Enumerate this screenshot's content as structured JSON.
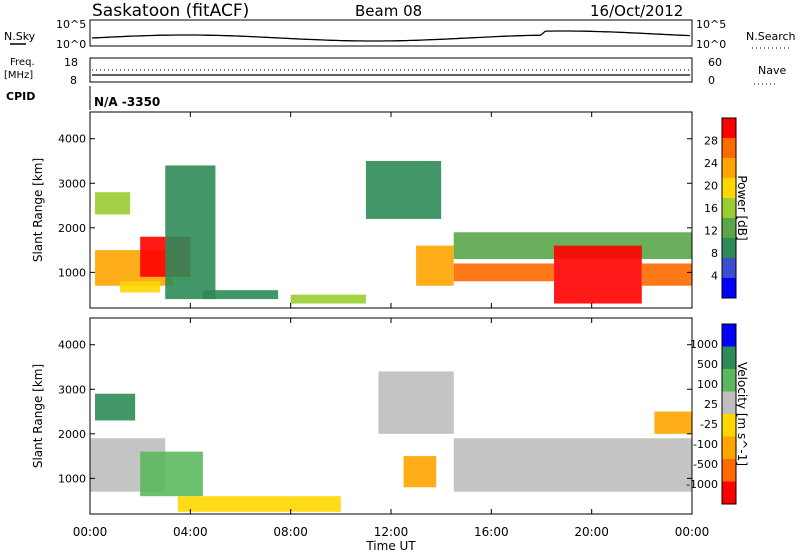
{
  "header": {
    "station": "Saskatoon (fitACF)",
    "beam": "Beam 08",
    "date": "16/Oct/2012"
  },
  "noise_panel": {
    "left_label": "N.Sky",
    "right_label": "N.Search",
    "left_ticks": [
      "10^5",
      "10^0"
    ],
    "right_ticks": [
      "10^5",
      "10^0"
    ]
  },
  "freq_panel": {
    "left_label_line1": "Freq.",
    "left_label_line2": "[MHz]",
    "left_ticks": [
      "18",
      "8"
    ],
    "right_label": "Nave",
    "right_ticks": [
      "60",
      "0"
    ],
    "cpid_label": "CPID",
    "cpid_value": "N/A -3350"
  },
  "colors": {
    "power_scale": [
      "#0000ff",
      "#3a4fd0",
      "#2e8b57",
      "#5aa64a",
      "#9acd32",
      "#ffd700",
      "#ffa500",
      "#ff6a00",
      "#ff0000"
    ],
    "velocity_scale": [
      "#0000ff",
      "#2e8b57",
      "#5cb85c",
      "#bebebe",
      "#ffd700",
      "#ffa500",
      "#ff6a00",
      "#ff0000"
    ],
    "ground_scatter": "#bebebe"
  },
  "chart_data": [
    {
      "type": "heatmap",
      "panel": "power",
      "ylabel": "Slant Range [km]",
      "yticks": [
        "1000",
        "2000",
        "3000",
        "4000"
      ],
      "ylim": [
        200,
        4600
      ],
      "colorbar_label": "Power [dB]",
      "colorbar_ticks": [
        "4",
        "8",
        "12",
        "16",
        "20",
        "24",
        "28"
      ],
      "regions": [
        {
          "t": [
            0.2,
            1.6
          ],
          "r": [
            2300,
            2800
          ],
          "level": 0.55
        },
        {
          "t": [
            0.2,
            3.3
          ],
          "r": [
            700,
            1500
          ],
          "level": 0.75
        },
        {
          "t": [
            2.0,
            4.0
          ],
          "r": [
            900,
            1800
          ],
          "level": 0.95
        },
        {
          "t": [
            1.2,
            2.8
          ],
          "r": [
            550,
            800
          ],
          "level": 0.6
        },
        {
          "t": [
            3.0,
            5.0
          ],
          "r": [
            400,
            3400
          ],
          "level": 0.2
        },
        {
          "t": [
            4.5,
            7.5
          ],
          "r": [
            400,
            600
          ],
          "level": 0.3
        },
        {
          "t": [
            8.0,
            11.0
          ],
          "r": [
            300,
            500
          ],
          "level": 0.5
        },
        {
          "t": [
            11.0,
            14.0
          ],
          "r": [
            2200,
            3500
          ],
          "level": 0.3
        },
        {
          "t": [
            13.0,
            14.5
          ],
          "r": [
            700,
            1600
          ],
          "level": 0.75
        },
        {
          "t": [
            14.5,
            18.5
          ],
          "r": [
            800,
            1200
          ],
          "level": 0.85
        },
        {
          "t": [
            14.5,
            24.0
          ],
          "r": [
            1300,
            1900
          ],
          "level": 0.35
        },
        {
          "t": [
            18.5,
            22.0
          ],
          "r": [
            300,
            1600
          ],
          "level": 1.0
        },
        {
          "t": [
            22.0,
            24.0
          ],
          "r": [
            700,
            1200
          ],
          "level": 0.85
        }
      ]
    },
    {
      "type": "heatmap",
      "panel": "velocity",
      "ylabel": "Slant Range [km]",
      "yticks": [
        "1000",
        "2000",
        "3000",
        "4000"
      ],
      "ylim": [
        200,
        4600
      ],
      "xlabel": "Time UT",
      "xticks": [
        "00:00",
        "04:00",
        "08:00",
        "12:00",
        "16:00",
        "20:00",
        "00:00"
      ],
      "xlim": [
        0,
        24
      ],
      "colorbar_label": "Velocity [m s^-1]",
      "colorbar_ticks": [
        "1000",
        "500",
        "100",
        "25",
        "-25",
        "-100",
        "-500",
        "-1000"
      ],
      "regions": [
        {
          "t": [
            0.0,
            3.0
          ],
          "r": [
            700,
            1900
          ],
          "level": "ground"
        },
        {
          "t": [
            0.2,
            1.8
          ],
          "r": [
            2300,
            2900
          ],
          "level": "pos_mid"
        },
        {
          "t": [
            2.0,
            4.5
          ],
          "r": [
            600,
            1600
          ],
          "level": "pos_low"
        },
        {
          "t": [
            3.5,
            10.0
          ],
          "r": [
            250,
            600
          ],
          "level": "neg_low"
        },
        {
          "t": [
            11.5,
            14.5
          ],
          "r": [
            2000,
            3400
          ],
          "level": "ground"
        },
        {
          "t": [
            12.5,
            13.8
          ],
          "r": [
            800,
            1500
          ],
          "level": "neg_mid"
        },
        {
          "t": [
            14.5,
            24.0
          ],
          "r": [
            700,
            1900
          ],
          "level": "ground"
        },
        {
          "t": [
            22.5,
            24.0
          ],
          "r": [
            2000,
            2500
          ],
          "level": "neg_mid"
        }
      ]
    }
  ]
}
